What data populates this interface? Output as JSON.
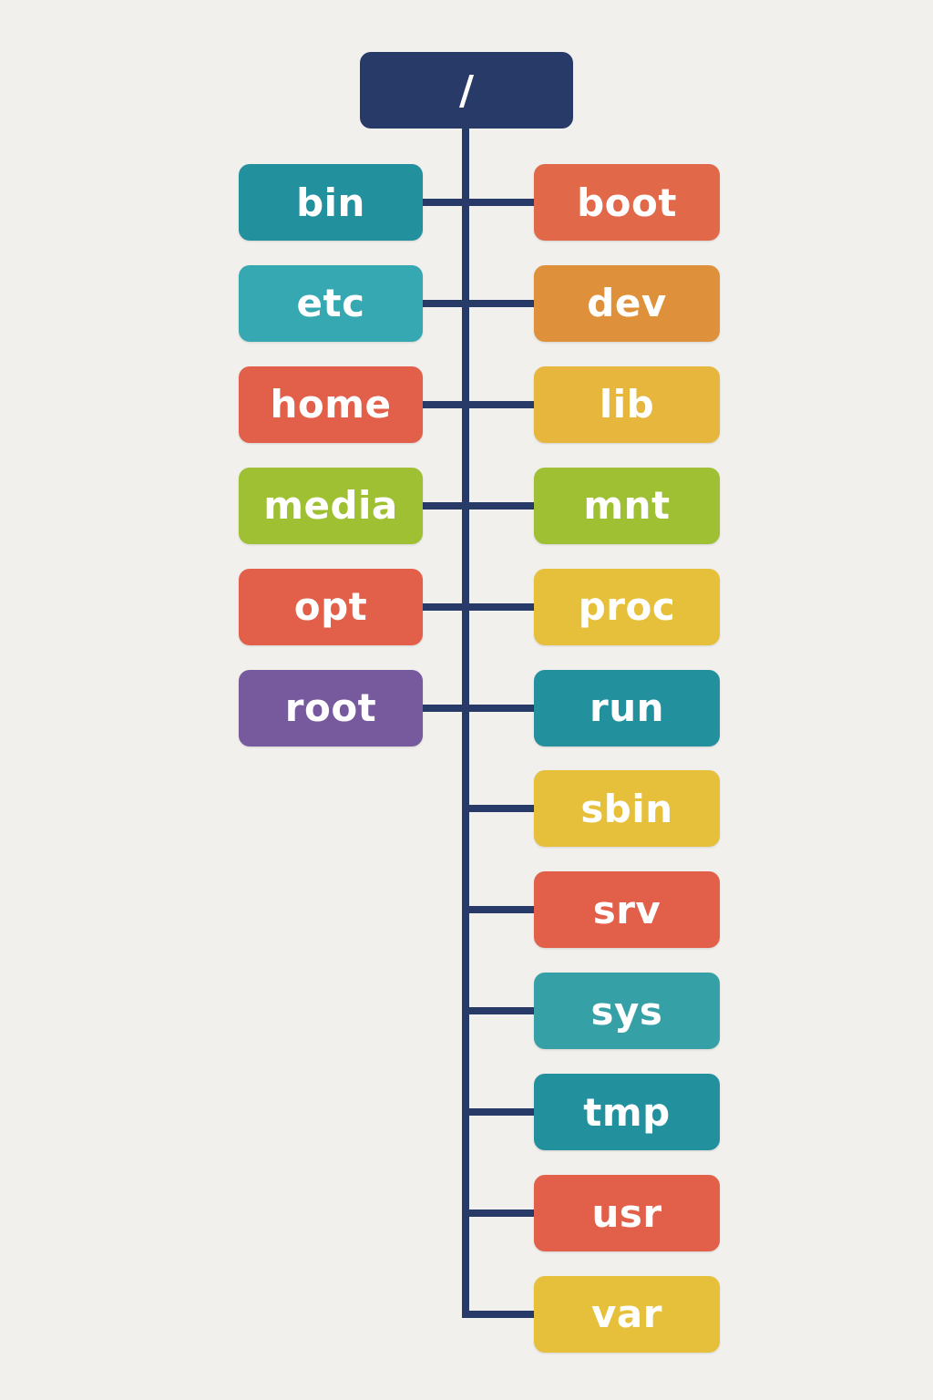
{
  "root": {
    "label": "/",
    "color": "#283a68"
  },
  "line_color": "#283a68",
  "left_column": [
    {
      "label": "bin",
      "color": "#23909e"
    },
    {
      "label": "etc",
      "color": "#35a8b2"
    },
    {
      "label": "home",
      "color": "#e2604a"
    },
    {
      "label": "media",
      "color": "#9ec032"
    },
    {
      "label": "opt",
      "color": "#e2604a"
    },
    {
      "label": "root",
      "color": "#775a9e"
    }
  ],
  "right_column": [
    {
      "label": "boot",
      "color": "#e2684a"
    },
    {
      "label": "dev",
      "color": "#de913a"
    },
    {
      "label": "lib",
      "color": "#e6b73c"
    },
    {
      "label": "mnt",
      "color": "#9ec032"
    },
    {
      "label": "proc",
      "color": "#e6c03a"
    },
    {
      "label": "run",
      "color": "#23909e"
    },
    {
      "label": "sbin",
      "color": "#e6c03a"
    },
    {
      "label": "srv",
      "color": "#e2604a"
    },
    {
      "label": "sys",
      "color": "#35a0a6"
    },
    {
      "label": "tmp",
      "color": "#23909e"
    },
    {
      "label": "usr",
      "color": "#e2604a"
    },
    {
      "label": "var",
      "color": "#e6c03a"
    }
  ]
}
